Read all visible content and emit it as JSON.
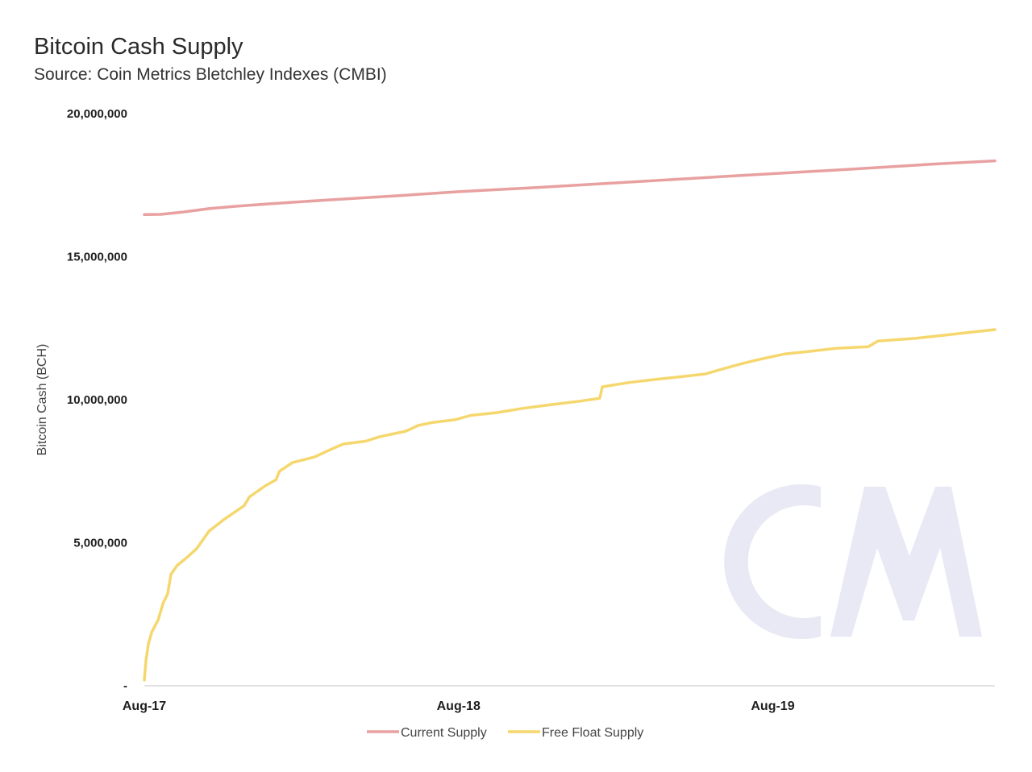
{
  "title": "Bitcoin Cash Supply",
  "subtitle": "Source: Coin Metrics Bletchley Indexes (CMBI)",
  "watermark": "CM",
  "chart_data": {
    "type": "line",
    "title": "Bitcoin Cash Supply",
    "subtitle": "Source: Coin Metrics Bletchley Indexes (CMBI)",
    "ylabel": "Bitcoin Cash (BCH)",
    "xlabel": "",
    "ylim": [
      0,
      20000000
    ],
    "xlim": [
      "2017-08-01",
      "2020-04-15"
    ],
    "y_ticks": [
      {
        "value": 0,
        "label": "-"
      },
      {
        "value": 5000000,
        "label": "5,000,000"
      },
      {
        "value": 10000000,
        "label": "10,000,000"
      },
      {
        "value": 15000000,
        "label": "15,000,000"
      },
      {
        "value": 20000000,
        "label": "20,000,000"
      }
    ],
    "x_ticks": [
      {
        "value": "2017-08-01",
        "label": "Aug-17"
      },
      {
        "value": "2018-08-01",
        "label": "Aug-18"
      },
      {
        "value": "2019-08-01",
        "label": "Aug-19"
      }
    ],
    "grid": false,
    "legend": "bottom-center",
    "series": [
      {
        "name": "Current Supply",
        "color": "#e8a0a0",
        "points": [
          [
            "2017-08-01",
            16470000
          ],
          [
            "2017-08-20",
            16480000
          ],
          [
            "2017-09-15",
            16560000
          ],
          [
            "2017-10-15",
            16680000
          ],
          [
            "2017-11-15",
            16760000
          ],
          [
            "2017-12-20",
            16840000
          ],
          [
            "2018-03-01",
            16980000
          ],
          [
            "2018-06-01",
            17150000
          ],
          [
            "2018-08-01",
            17270000
          ],
          [
            "2018-11-01",
            17420000
          ],
          [
            "2019-02-01",
            17580000
          ],
          [
            "2019-05-01",
            17740000
          ],
          [
            "2019-08-01",
            17900000
          ],
          [
            "2019-11-01",
            18060000
          ],
          [
            "2020-02-01",
            18230000
          ],
          [
            "2020-04-15",
            18350000
          ]
        ]
      },
      {
        "name": "Free Float Supply",
        "color": "#f5d76e",
        "points": [
          [
            "2017-08-01",
            200000
          ],
          [
            "2017-08-03",
            900000
          ],
          [
            "2017-08-06",
            1500000
          ],
          [
            "2017-08-10",
            1900000
          ],
          [
            "2017-08-17",
            2300000
          ],
          [
            "2017-08-23",
            2900000
          ],
          [
            "2017-08-28",
            3200000
          ],
          [
            "2017-09-01",
            3900000
          ],
          [
            "2017-09-08",
            4200000
          ],
          [
            "2017-09-20",
            4500000
          ],
          [
            "2017-10-01",
            4800000
          ],
          [
            "2017-10-15",
            5400000
          ],
          [
            "2017-11-01",
            5800000
          ],
          [
            "2017-11-25",
            6300000
          ],
          [
            "2017-12-01",
            6600000
          ],
          [
            "2017-12-20",
            7000000
          ],
          [
            "2018-01-01",
            7200000
          ],
          [
            "2018-01-05",
            7500000
          ],
          [
            "2018-01-20",
            7800000
          ],
          [
            "2018-02-15",
            8000000
          ],
          [
            "2018-03-01",
            8200000
          ],
          [
            "2018-03-20",
            8450000
          ],
          [
            "2018-04-15",
            8550000
          ],
          [
            "2018-05-01",
            8700000
          ],
          [
            "2018-06-01",
            8900000
          ],
          [
            "2018-06-15",
            9100000
          ],
          [
            "2018-07-01",
            9200000
          ],
          [
            "2018-07-28",
            9300000
          ],
          [
            "2018-08-15",
            9450000
          ],
          [
            "2018-09-15",
            9550000
          ],
          [
            "2018-10-15",
            9700000
          ],
          [
            "2018-11-15",
            9820000
          ],
          [
            "2018-12-20",
            9950000
          ],
          [
            "2019-01-12",
            10050000
          ],
          [
            "2019-01-15",
            10450000
          ],
          [
            "2019-02-15",
            10600000
          ],
          [
            "2019-03-15",
            10700000
          ],
          [
            "2019-04-15",
            10800000
          ],
          [
            "2019-05-15",
            10900000
          ],
          [
            "2019-06-01",
            11050000
          ],
          [
            "2019-06-25",
            11250000
          ],
          [
            "2019-07-15",
            11400000
          ],
          [
            "2019-08-15",
            11600000
          ],
          [
            "2019-09-15",
            11700000
          ],
          [
            "2019-10-15",
            11800000
          ],
          [
            "2019-11-20",
            11850000
          ],
          [
            "2019-12-01",
            12050000
          ],
          [
            "2020-01-15",
            12150000
          ],
          [
            "2020-02-15",
            12250000
          ],
          [
            "2020-03-15",
            12350000
          ],
          [
            "2020-04-15",
            12450000
          ]
        ]
      }
    ]
  }
}
